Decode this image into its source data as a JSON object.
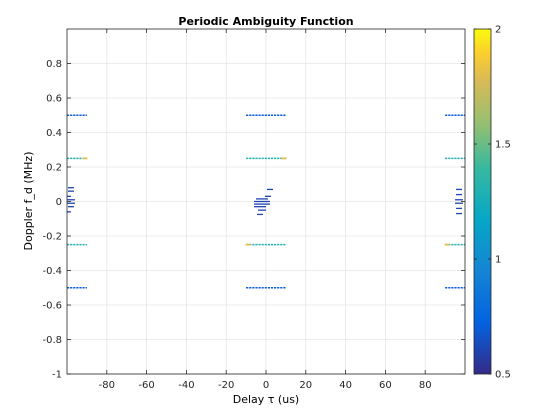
{
  "chart_data": {
    "type": "heatmap",
    "title": "Periodic Ambiguity Function",
    "xlabel": "Delay τ (us)",
    "ylabel": "Doppler f_d (MHz)",
    "xlim": [
      -100,
      100
    ],
    "ylim": [
      -1,
      1
    ],
    "xticks": [
      -80,
      -60,
      -40,
      -20,
      0,
      20,
      40,
      60,
      80
    ],
    "xtick_labels": [
      "-80",
      "-60",
      "-40",
      "-20",
      "0",
      "20",
      "40",
      "60",
      "80"
    ],
    "yticks": [
      -1,
      -0.8,
      -0.6,
      -0.4,
      -0.2,
      0,
      0.2,
      0.4,
      0.6,
      0.8
    ],
    "ytick_labels": [
      "-1",
      "-0.8",
      "-0.6",
      "-0.4",
      "-0.2",
      "0",
      "0.2",
      "0.4",
      "0.6",
      "0.8"
    ],
    "grid": true,
    "colormap": "parula",
    "colorbar": {
      "range": [
        0.5,
        2
      ],
      "ticks": [
        0.5,
        1,
        1.5,
        2
      ],
      "tick_labels": [
        "0.5",
        "1",
        "1.5",
        "2"
      ]
    },
    "segments": [
      {
        "x0": -100,
        "x1": -90,
        "y": 0.5,
        "value": 0.7
      },
      {
        "x0": -10,
        "x1": 10,
        "y": 0.5,
        "value": 0.7
      },
      {
        "x0": 90,
        "x1": 100,
        "y": 0.5,
        "value": 0.7
      },
      {
        "x0": -100,
        "x1": -90,
        "y": 0.25,
        "value": 1.3
      },
      {
        "x0": -10,
        "x1": 10,
        "y": 0.25,
        "value": 1.3
      },
      {
        "x0": 90,
        "x1": 100,
        "y": 0.25,
        "value": 1.3
      },
      {
        "x0": -100,
        "x1": -90,
        "y": -0.25,
        "value": 1.3
      },
      {
        "x0": -10,
        "x1": 10,
        "y": -0.25,
        "value": 1.3
      },
      {
        "x0": 90,
        "x1": 100,
        "y": -0.25,
        "value": 1.3
      },
      {
        "x0": -100,
        "x1": -90,
        "y": -0.5,
        "value": 0.7
      },
      {
        "x0": -10,
        "x1": 10,
        "y": -0.5,
        "value": 0.7
      },
      {
        "x0": 90,
        "x1": 100,
        "y": -0.5,
        "value": 0.7
      }
    ],
    "peaks": [
      {
        "x": -91,
        "y": 0.25,
        "value": 1.8
      },
      {
        "x": 9,
        "y": 0.25,
        "value": 1.8
      },
      {
        "x": -9,
        "y": -0.25,
        "value": 1.8
      },
      {
        "x": 91,
        "y": -0.25,
        "value": 1.8
      }
    ],
    "clusters": [
      {
        "cx": -98,
        "y": 0.08,
        "w": 3,
        "value": 0.6
      },
      {
        "cx": -98,
        "y": 0.06,
        "w": 3,
        "value": 0.6
      },
      {
        "cx": -99,
        "y": 0.03,
        "w": 2,
        "value": 0.6
      },
      {
        "cx": -98,
        "y": 0.01,
        "w": 4,
        "value": 0.6
      },
      {
        "cx": -98,
        "y": -0.01,
        "w": 4,
        "value": 0.6
      },
      {
        "cx": -98,
        "y": -0.03,
        "w": 3,
        "value": 0.6
      },
      {
        "cx": -99,
        "y": -0.06,
        "w": 2,
        "value": 0.6
      },
      {
        "cx": 2,
        "y": 0.07,
        "w": 3,
        "value": 0.6
      },
      {
        "cx": 1,
        "y": 0.03,
        "w": 3,
        "value": 0.6
      },
      {
        "cx": -2,
        "y": 0.015,
        "w": 6,
        "value": 0.6
      },
      {
        "cx": -2,
        "y": 0.0,
        "w": 8,
        "value": 0.6
      },
      {
        "cx": -2,
        "y": -0.015,
        "w": 8,
        "value": 0.6
      },
      {
        "cx": -3,
        "y": -0.03,
        "w": 6,
        "value": 0.6
      },
      {
        "cx": -2,
        "y": -0.05,
        "w": 4,
        "value": 0.6
      },
      {
        "cx": -3,
        "y": -0.075,
        "w": 3,
        "value": 0.6
      },
      {
        "cx": 97,
        "y": 0.07,
        "w": 3,
        "value": 0.6
      },
      {
        "cx": 97,
        "y": 0.04,
        "w": 3,
        "value": 0.6
      },
      {
        "cx": 97,
        "y": 0.01,
        "w": 4,
        "value": 0.6
      },
      {
        "cx": 97,
        "y": -0.01,
        "w": 4,
        "value": 0.6
      },
      {
        "cx": 97,
        "y": -0.04,
        "w": 3,
        "value": 0.6
      },
      {
        "cx": 97,
        "y": -0.07,
        "w": 3,
        "value": 0.6
      }
    ]
  }
}
